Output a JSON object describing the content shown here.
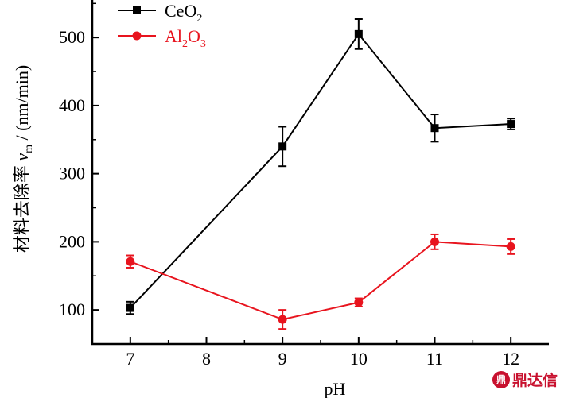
{
  "chart_data": {
    "type": "line",
    "xlabel": "pH",
    "ylabel_main": "材料去除率 ",
    "ylabel_symbol": "v",
    "ylabel_subscript": "m",
    "ylabel_unit": " / (nm/min)",
    "xlim": [
      6.5,
      12.5
    ],
    "ylim": [
      50,
      555
    ],
    "x_ticks": [
      7,
      8,
      9,
      10,
      11,
      12
    ],
    "y_ticks": [
      100,
      200,
      300,
      400,
      500
    ],
    "grid": false,
    "legend_position": "top-left",
    "series": [
      {
        "name": "CeO2",
        "name_parts": [
          {
            "text": "CeO",
            "sub": false
          },
          {
            "text": "2",
            "sub": true
          }
        ],
        "color": "#000000",
        "marker": "square",
        "x": [
          7,
          9,
          10,
          11,
          12
        ],
        "y": [
          103,
          340,
          505,
          367,
          373
        ],
        "error": [
          9,
          29,
          22,
          20,
          8
        ]
      },
      {
        "name": "Al2O3",
        "name_parts": [
          {
            "text": "Al",
            "sub": false
          },
          {
            "text": "2",
            "sub": true
          },
          {
            "text": "O",
            "sub": false
          },
          {
            "text": "3",
            "sub": true
          }
        ],
        "color": "#e8141e",
        "marker": "circle",
        "x": [
          7,
          9,
          10,
          11,
          12
        ],
        "y": [
          171,
          86,
          111,
          200,
          193
        ],
        "error": [
          9,
          14,
          6,
          11,
          11
        ]
      }
    ]
  },
  "watermark": {
    "logo_text": "鼎",
    "text": "鼎达信",
    "color": "#c8102e"
  }
}
